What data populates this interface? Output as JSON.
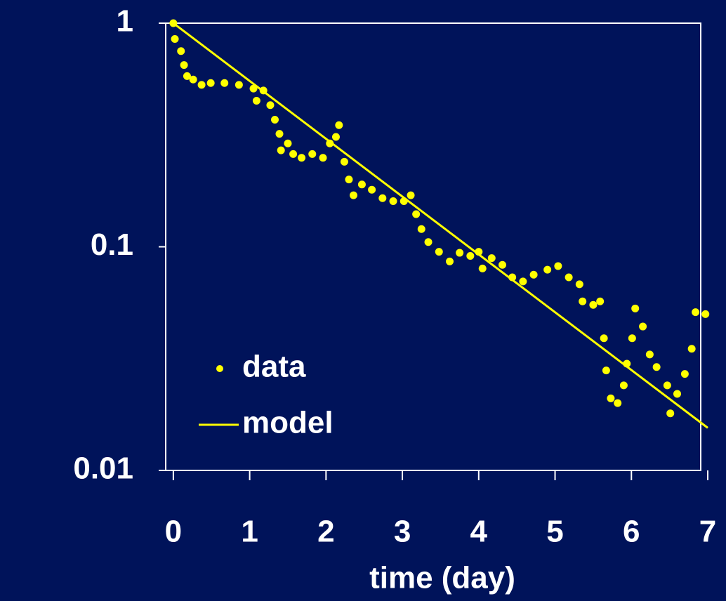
{
  "chart_data": {
    "type": "scatter",
    "x_label": "time (day)",
    "yscale": "log",
    "xlim": [
      -0.1,
      7
    ],
    "ylim": [
      0.01,
      1
    ],
    "xticks": [
      0,
      1,
      2,
      3,
      4,
      5,
      6,
      7
    ],
    "yticks": [
      0.01,
      0.1,
      1
    ],
    "legend": "lower left",
    "series": [
      {
        "name": "data",
        "color": "#ffff00",
        "mode": "markers",
        "x": [
          0,
          0.02,
          0.1,
          0.14,
          0.18,
          0.26,
          0.37,
          0.49,
          0.67,
          0.86,
          1.05,
          1.09,
          1.18,
          1.27,
          1.33,
          1.39,
          1.41,
          1.5,
          1.57,
          1.68,
          1.82,
          1.96,
          2.05,
          2.13,
          2.17,
          2.24,
          2.3,
          2.36,
          2.47,
          2.6,
          2.74,
          2.88,
          3.02,
          3.11,
          3.18,
          3.25,
          3.34,
          3.48,
          3.62,
          3.75,
          3.89,
          4.0,
          4.05,
          4.17,
          4.31,
          4.44,
          4.58,
          4.72,
          4.9,
          5.04,
          5.18,
          5.32,
          5.36,
          5.5,
          5.59,
          5.64,
          5.67,
          5.73,
          5.82,
          5.9,
          5.94,
          6.01,
          6.05,
          6.15,
          6.24,
          6.33,
          6.47,
          6.51,
          6.6,
          6.7,
          6.79,
          6.84,
          6.97
        ],
        "values": [
          1,
          0.85,
          0.75,
          0.65,
          0.58,
          0.56,
          0.53,
          0.54,
          0.54,
          0.53,
          0.51,
          0.45,
          0.5,
          0.43,
          0.37,
          0.32,
          0.27,
          0.29,
          0.26,
          0.25,
          0.26,
          0.25,
          0.29,
          0.31,
          0.35,
          0.24,
          0.2,
          0.17,
          0.19,
          0.18,
          0.165,
          0.16,
          0.16,
          0.17,
          0.14,
          0.12,
          0.105,
          0.095,
          0.086,
          0.094,
          0.091,
          0.095,
          0.08,
          0.089,
          0.083,
          0.073,
          0.07,
          0.075,
          0.079,
          0.082,
          0.073,
          0.068,
          0.057,
          0.055,
          0.057,
          0.039,
          0.028,
          0.021,
          0.02,
          0.024,
          0.03,
          0.039,
          0.053,
          0.044,
          0.033,
          0.029,
          0.024,
          0.018,
          0.022,
          0.027,
          0.035,
          0.051,
          0.05
        ]
      },
      {
        "name": "model",
        "color": "#ffff00",
        "mode": "line",
        "x": [
          0,
          7
        ],
        "values": [
          1,
          0.0155
        ]
      }
    ]
  }
}
